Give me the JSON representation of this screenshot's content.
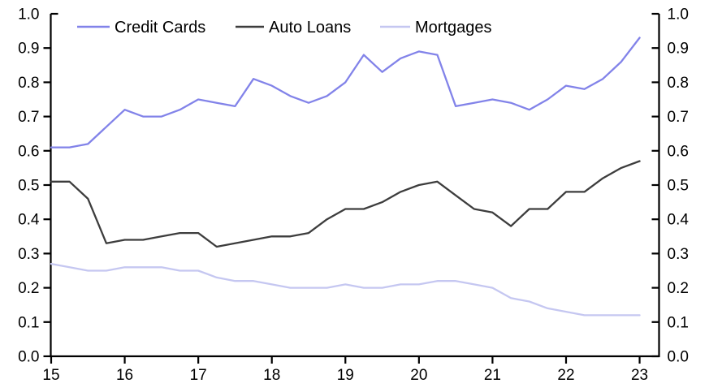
{
  "chart_data": {
    "type": "line",
    "title": "",
    "xlabel": "",
    "ylabel": "",
    "grid": false,
    "legend_position": "top-inside-horizontal",
    "xlim": [
      15,
      23.27
    ],
    "ylim": [
      0.0,
      1.0
    ],
    "xticks": [
      "15",
      "16",
      "17",
      "18",
      "19",
      "20",
      "21",
      "22",
      "23"
    ],
    "yticks": [
      "0.0",
      "0.1",
      "0.2",
      "0.3",
      "0.4",
      "0.5",
      "0.6",
      "0.7",
      "0.8",
      "0.9",
      "1.0"
    ],
    "y_axis_sides": "both",
    "x": [
      15.0,
      15.25,
      15.5,
      15.75,
      16.0,
      16.25,
      16.5,
      16.75,
      17.0,
      17.25,
      17.5,
      17.75,
      18.0,
      18.25,
      18.5,
      18.75,
      19.0,
      19.25,
      19.5,
      19.75,
      20.0,
      20.25,
      20.5,
      20.75,
      21.0,
      21.25,
      21.5,
      21.75,
      22.0,
      22.25,
      22.5,
      22.75,
      23.0
    ],
    "series": [
      {
        "name": "Credit Cards",
        "color": "#8283e9",
        "values": [
          0.61,
          0.61,
          0.62,
          0.67,
          0.72,
          0.7,
          0.7,
          0.72,
          0.75,
          0.74,
          0.73,
          0.81,
          0.79,
          0.76,
          0.74,
          0.76,
          0.8,
          0.88,
          0.83,
          0.87,
          0.89,
          0.88,
          0.73,
          0.74,
          0.75,
          0.74,
          0.72,
          0.75,
          0.79,
          0.78,
          0.81,
          0.86,
          0.93
        ]
      },
      {
        "name": "Auto Loans",
        "color": "#3d3d3d",
        "values": [
          0.51,
          0.51,
          0.46,
          0.33,
          0.34,
          0.34,
          0.35,
          0.36,
          0.36,
          0.32,
          0.33,
          0.34,
          0.35,
          0.35,
          0.36,
          0.4,
          0.43,
          0.43,
          0.45,
          0.48,
          0.5,
          0.51,
          0.47,
          0.43,
          0.42,
          0.38,
          0.43,
          0.43,
          0.48,
          0.48,
          0.52,
          0.55,
          0.57
        ]
      },
      {
        "name": "Mortgages",
        "color": "#c5c7f1",
        "values": [
          0.27,
          0.26,
          0.25,
          0.25,
          0.26,
          0.26,
          0.26,
          0.25,
          0.25,
          0.23,
          0.22,
          0.22,
          0.21,
          0.2,
          0.2,
          0.2,
          0.21,
          0.2,
          0.2,
          0.21,
          0.21,
          0.22,
          0.22,
          0.21,
          0.2,
          0.17,
          0.16,
          0.14,
          0.13,
          0.12,
          0.12,
          0.12,
          0.12
        ]
      }
    ]
  },
  "colors": {
    "axis": "#000000",
    "tick_text": "#000000",
    "background": "#ffffff"
  }
}
